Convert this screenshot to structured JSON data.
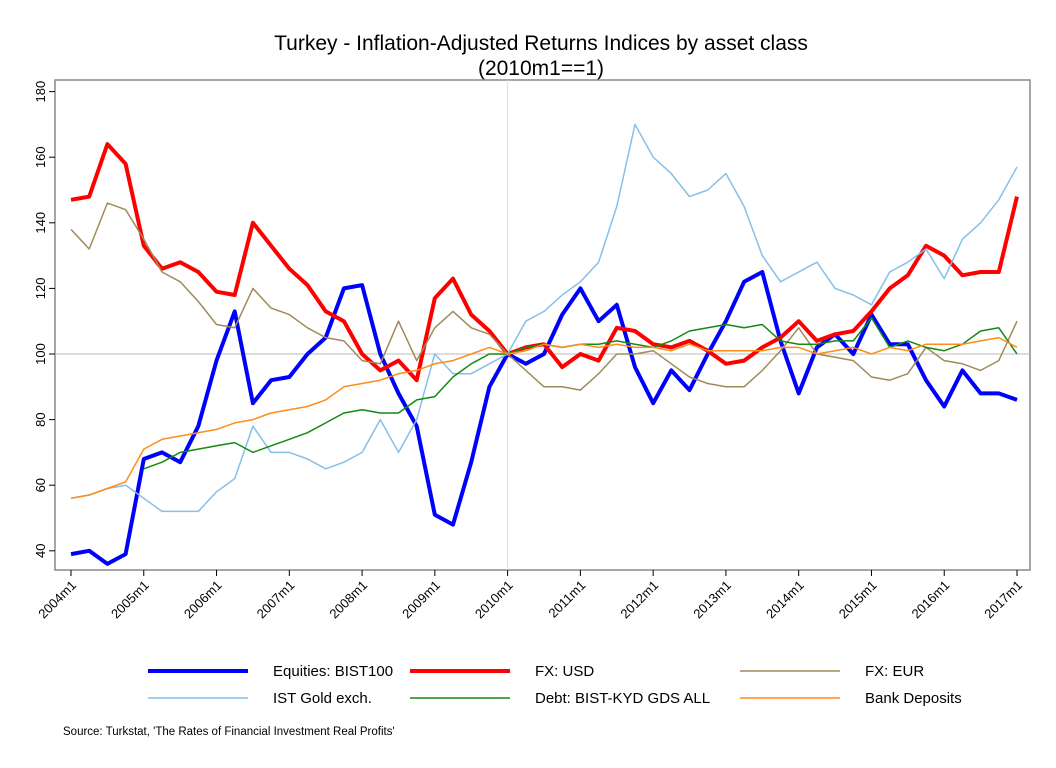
{
  "chart_data": {
    "type": "line",
    "title": "Turkey - Inflation-Adjusted Returns Indices by asset class",
    "subtitle": "(2010m1==1)",
    "xlabel": "",
    "ylabel": "",
    "ylim": [
      35,
      182
    ],
    "yticks": [
      40,
      60,
      80,
      100,
      120,
      140,
      160,
      180
    ],
    "xticks": [
      "2004m1",
      "2005m1",
      "2006m1",
      "2007m1",
      "2008m1",
      "2009m1",
      "2010m1",
      "2011m1",
      "2012m1",
      "2013m1",
      "2014m1",
      "2015m1",
      "2016m1",
      "2017m1"
    ],
    "reference_lines": {
      "y": 100,
      "x": "2010m1"
    },
    "grid": false,
    "legend_placement": "bottom",
    "source": "Source: Turkstat, 'The Rates of Financial Investment Real Profits'",
    "x": [
      "2004m1",
      "2004m4",
      "2004m7",
      "2004m10",
      "2005m1",
      "2005m4",
      "2005m7",
      "2005m10",
      "2006m1",
      "2006m4",
      "2006m7",
      "2006m10",
      "2007m1",
      "2007m4",
      "2007m7",
      "2007m10",
      "2008m1",
      "2008m4",
      "2008m7",
      "2008m10",
      "2009m1",
      "2009m4",
      "2009m7",
      "2009m10",
      "2010m1",
      "2010m4",
      "2010m7",
      "2010m10",
      "2011m1",
      "2011m4",
      "2011m7",
      "2011m10",
      "2012m1",
      "2012m4",
      "2012m7",
      "2012m10",
      "2013m1",
      "2013m4",
      "2013m7",
      "2013m10",
      "2014m1",
      "2014m4",
      "2014m7",
      "2014m10",
      "2015m1",
      "2015m4",
      "2015m7",
      "2015m10",
      "2016m1",
      "2016m4",
      "2016m7",
      "2016m10",
      "2017m1"
    ],
    "series": [
      {
        "name": "Equities: BIST100",
        "color": "#0000ff",
        "width": "thick",
        "values": [
          39,
          40,
          36,
          39,
          68,
          70,
          67,
          78,
          98,
          113,
          85,
          92,
          93,
          100,
          105,
          120,
          121,
          100,
          88,
          78,
          51,
          48,
          67,
          90,
          100,
          97,
          100,
          112,
          120,
          110,
          115,
          96,
          85,
          95,
          89,
          100,
          110,
          122,
          125,
          104,
          88,
          102,
          106,
          100,
          112,
          103,
          103,
          92,
          84,
          95,
          88,
          88,
          86
        ]
      },
      {
        "name": "FX: USD",
        "color": "#ff0000",
        "width": "thick",
        "values": [
          147,
          148,
          164,
          158,
          133,
          126,
          128,
          125,
          119,
          118,
          140,
          133,
          126,
          121,
          113,
          110,
          100,
          95,
          98,
          92,
          117,
          123,
          112,
          107,
          100,
          102,
          103,
          96,
          100,
          98,
          108,
          107,
          103,
          102,
          104,
          101,
          97,
          98,
          102,
          105,
          110,
          104,
          106,
          107,
          113,
          120,
          124,
          133,
          130,
          124,
          125,
          125,
          148
        ]
      },
      {
        "name": "FX: EUR",
        "color": "#a08a5a",
        "width": "thin",
        "values": [
          138,
          132,
          146,
          144,
          135,
          125,
          122,
          116,
          109,
          108,
          120,
          114,
          112,
          108,
          105,
          104,
          98,
          97,
          110,
          98,
          108,
          113,
          108,
          106,
          100,
          95,
          90,
          90,
          89,
          94,
          100,
          100,
          101,
          97,
          93,
          91,
          90,
          90,
          95,
          101,
          108,
          100,
          99,
          98,
          93,
          92,
          94,
          102,
          98,
          97,
          95,
          98,
          110
        ]
      },
      {
        "name": "IST Gold exch.",
        "color": "#87bfe8",
        "width": "thin",
        "values": [
          56,
          57,
          59,
          60,
          56,
          52,
          52,
          52,
          58,
          62,
          78,
          70,
          70,
          68,
          65,
          67,
          70,
          80,
          70,
          80,
          100,
          94,
          94,
          97,
          100,
          110,
          113,
          118,
          122,
          128,
          145,
          170,
          160,
          155,
          148,
          150,
          155,
          145,
          130,
          122,
          125,
          128,
          120,
          118,
          115,
          125,
          128,
          132,
          123,
          135,
          140,
          147,
          157
        ]
      },
      {
        "name": "Debt: BIST-KYD GDS ALL",
        "color": "#138a13",
        "width": "thin",
        "values": [
          null,
          null,
          null,
          null,
          65,
          67,
          70,
          71,
          72,
          73,
          70,
          72,
          74,
          76,
          79,
          82,
          83,
          82,
          82,
          86,
          87,
          93,
          97,
          100,
          100,
          102,
          103,
          102,
          103,
          103,
          104,
          103,
          102,
          104,
          107,
          108,
          109,
          108,
          109,
          104,
          103,
          103,
          104,
          104,
          111,
          102,
          104,
          102,
          101,
          103,
          107,
          108,
          100
        ]
      },
      {
        "name": "Bank Deposits",
        "color": "#ff8c1a",
        "width": "thin",
        "values": [
          56,
          57,
          59,
          61,
          71,
          74,
          75,
          76,
          77,
          79,
          80,
          82,
          83,
          84,
          86,
          90,
          91,
          92,
          94,
          95,
          97,
          98,
          100,
          102,
          100,
          101,
          103,
          102,
          103,
          102,
          103,
          102,
          102,
          101,
          103,
          101,
          101,
          101,
          101,
          102,
          102,
          100,
          101,
          102,
          100,
          102,
          101,
          103,
          103,
          103,
          104,
          105,
          102
        ]
      }
    ]
  }
}
